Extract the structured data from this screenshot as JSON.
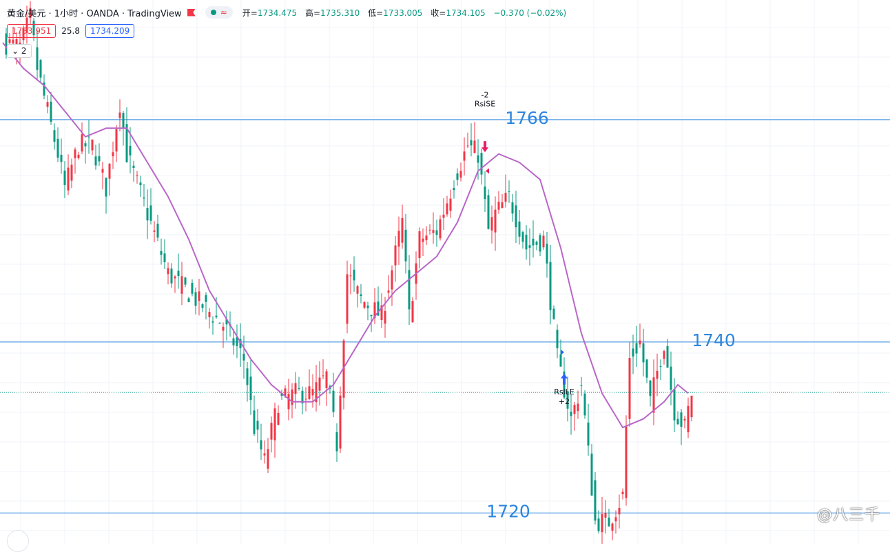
{
  "header": {
    "title": "黄金/美元 · 1小时 · OANDA · TradingView",
    "ohlc": [
      {
        "label": "开",
        "value": "1734.475"
      },
      {
        "label": "高",
        "value": "1735.310"
      },
      {
        "label": "低",
        "value": "1733.005"
      },
      {
        "label": "收",
        "value": "1734.105"
      }
    ],
    "change": "−0.370 (−0.02%)"
  },
  "quote": {
    "bid": "1733.951",
    "spread": "25.8",
    "ask": "1734.209"
  },
  "indicators_toggle": "2",
  "watermark": "@八三千",
  "colors": {
    "up": "#f23645",
    "down": "#089981",
    "ma": "#b966c8",
    "level": "#2e86de"
  },
  "chart_data": {
    "type": "candlestick",
    "ylim": [
      1716.4,
      1780
    ],
    "levels": [
      {
        "label": "1766",
        "value": 1766
      },
      {
        "label": "1740",
        "value": 1740
      },
      {
        "label": "1720",
        "value": 1720
      }
    ],
    "current_price": 1734.1,
    "signals": [
      {
        "lines": [
          "-2",
          "RsiSE"
        ],
        "bar": 140,
        "direction": "short"
      },
      {
        "lines": [
          "RsiLE",
          "+2"
        ],
        "bar": 163,
        "direction": "long"
      }
    ],
    "anchors": [
      [
        0,
        1775
      ],
      [
        5,
        1774.5
      ],
      [
        8,
        1778
      ],
      [
        10,
        1772
      ],
      [
        16,
        1762
      ],
      [
        18,
        1758
      ],
      [
        22,
        1763
      ],
      [
        26,
        1763
      ],
      [
        30,
        1758
      ],
      [
        34,
        1768
      ],
      [
        36,
        1762
      ],
      [
        42,
        1755
      ],
      [
        48,
        1748
      ],
      [
        56,
        1745
      ],
      [
        64,
        1742
      ],
      [
        70,
        1738
      ],
      [
        73,
        1730
      ],
      [
        76,
        1726
      ],
      [
        80,
        1733
      ],
      [
        85,
        1734
      ],
      [
        90,
        1734
      ],
      [
        94,
        1736
      ],
      [
        97,
        1728
      ],
      [
        100,
        1748
      ],
      [
        104,
        1745
      ],
      [
        110,
        1743
      ],
      [
        116,
        1754
      ],
      [
        118,
        1743
      ],
      [
        121,
        1752
      ],
      [
        126,
        1753
      ],
      [
        132,
        1760
      ],
      [
        135,
        1763
      ],
      [
        138,
        1762
      ],
      [
        141,
        1753
      ],
      [
        143,
        1755
      ],
      [
        147,
        1757
      ],
      [
        152,
        1751
      ],
      [
        157,
        1752
      ],
      [
        161,
        1738
      ],
      [
        165,
        1731
      ],
      [
        168,
        1735
      ],
      [
        172,
        1719
      ],
      [
        176,
        1719
      ],
      [
        180,
        1722
      ],
      [
        182,
        1738
      ],
      [
        185,
        1740
      ],
      [
        188,
        1733
      ],
      [
        192,
        1740
      ],
      [
        195,
        1732
      ],
      [
        198,
        1730
      ],
      [
        200,
        1734
      ]
    ],
    "ma": [
      [
        0,
        1775
      ],
      [
        6,
        1772
      ],
      [
        12,
        1770
      ],
      [
        18,
        1767
      ],
      [
        24,
        1764
      ],
      [
        30,
        1765
      ],
      [
        36,
        1765
      ],
      [
        42,
        1761
      ],
      [
        48,
        1757
      ],
      [
        54,
        1752
      ],
      [
        60,
        1746
      ],
      [
        66,
        1742
      ],
      [
        72,
        1738
      ],
      [
        78,
        1735
      ],
      [
        84,
        1733
      ],
      [
        90,
        1733
      ],
      [
        96,
        1735
      ],
      [
        102,
        1739
      ],
      [
        108,
        1743
      ],
      [
        114,
        1746
      ],
      [
        120,
        1748
      ],
      [
        126,
        1750
      ],
      [
        132,
        1754
      ],
      [
        138,
        1760
      ],
      [
        144,
        1762
      ],
      [
        150,
        1761
      ],
      [
        156,
        1759
      ],
      [
        162,
        1751
      ],
      [
        168,
        1741
      ],
      [
        174,
        1734
      ],
      [
        180,
        1730
      ],
      [
        186,
        1731
      ],
      [
        192,
        1733
      ],
      [
        196,
        1735
      ],
      [
        199,
        1734
      ]
    ]
  }
}
